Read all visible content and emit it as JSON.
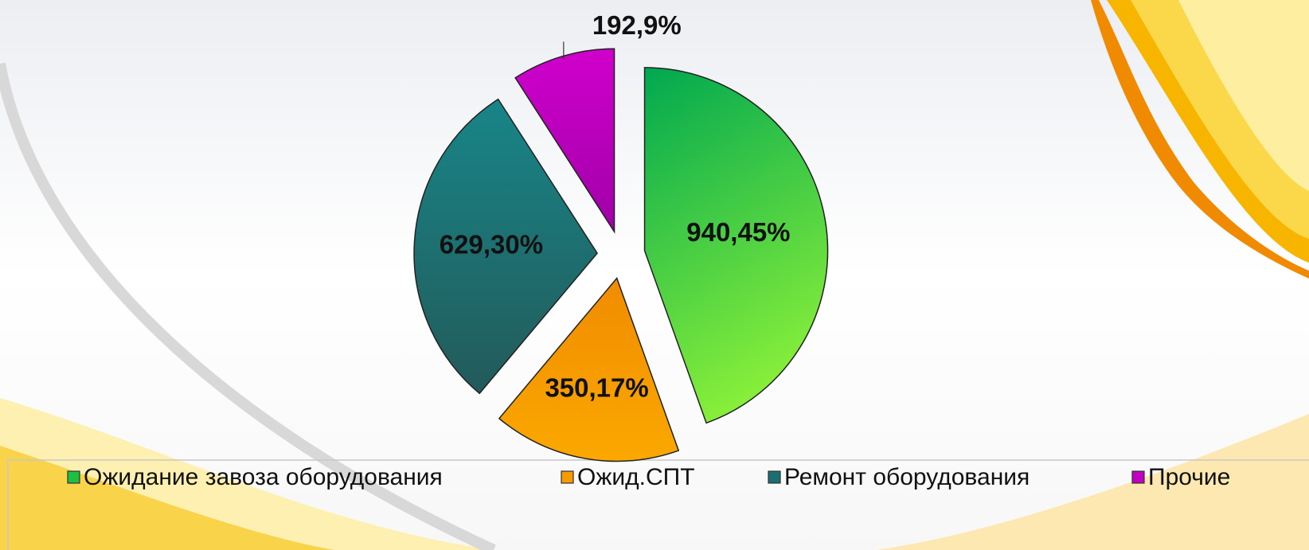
{
  "chart_data": {
    "type": "pie",
    "categories": [
      "Ожидание завоза оборудования",
      "Ожид.СПТ",
      "Ремонт оборудования",
      "Прочие"
    ],
    "values": [
      940,
      350,
      629,
      192
    ],
    "value_labels": [
      "940,45%",
      "350,17%",
      "629,30%",
      "192,9%"
    ],
    "colors": [
      "#1fbf46",
      "#f59a00",
      "#1c6f70",
      "#c000c0"
    ],
    "legend": "bottom"
  }
}
